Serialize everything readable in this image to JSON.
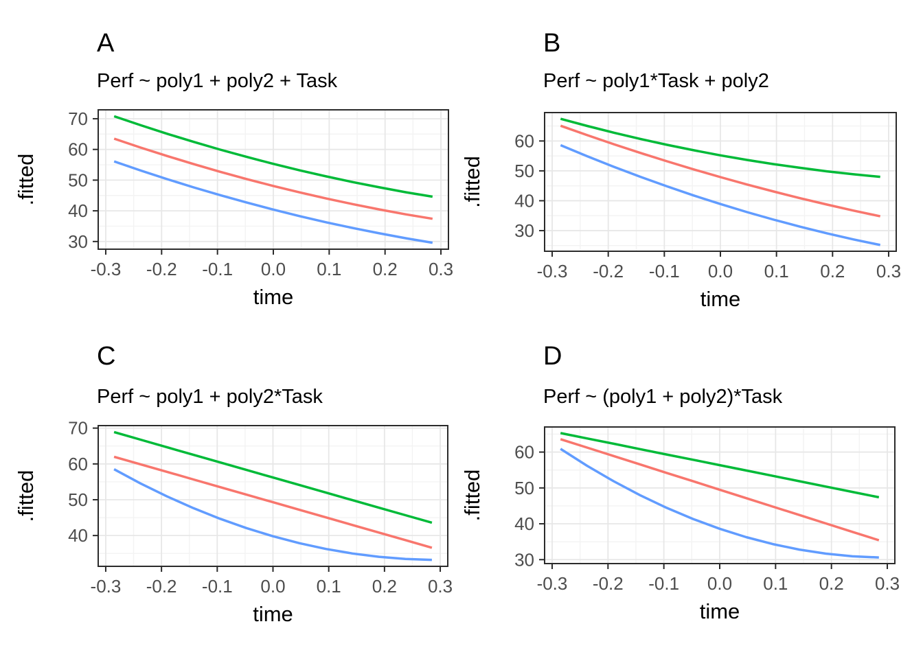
{
  "figure": {
    "background": "#FFFFFF",
    "theme": {
      "grid_major": "#E7E7E7",
      "grid_minor": "#F3F3F3",
      "panel_border": "#2B2B2B",
      "tick_mark_color": "#2B2B2B",
      "tick_label_color": "#4D4D4D",
      "axis_title_color": "#000000",
      "series_green": "#00BA38",
      "series_red": "#F8766D",
      "series_blue": "#619CFF"
    }
  },
  "chart_data": [
    {
      "type": "line",
      "label": "A",
      "title": "Perf ~ poly1 + poly2 + Task",
      "xlabel": "time",
      "ylabel": ".fitted",
      "xlim": [
        -0.3135,
        0.3135
      ],
      "ylim": [
        27.5,
        72.9
      ],
      "x_ticks": [
        -0.3,
        -0.2,
        -0.1,
        0,
        0.1,
        0.2,
        0.3
      ],
      "x_tick_labels": [
        "-0.3",
        "-0.2",
        "-0.1",
        "0.0",
        "0.1",
        "0.2",
        "0.3"
      ],
      "y_ticks": [
        30,
        40,
        50,
        60,
        70
      ],
      "y_tick_labels": [
        "30",
        "40",
        "50",
        "60",
        "70"
      ],
      "grid": "major+minor",
      "legend": "none",
      "x": [
        -0.285,
        -0.2375,
        -0.19,
        -0.1425,
        -0.095,
        -0.0475,
        0,
        0.0475,
        0.095,
        0.1425,
        0.19,
        0.2375,
        0.285
      ],
      "series": [
        {
          "name": "series-green",
          "color": "#00BA38",
          "values": [
            70.8,
            67.88,
            65.1,
            62.45,
            59.93,
            57.55,
            55.3,
            53.18,
            51.2,
            49.35,
            47.64,
            46.05,
            44.6
          ]
        },
        {
          "name": "series-red",
          "color": "#F8766D",
          "values": [
            63.5,
            60.61,
            57.84,
            55.22,
            52.71,
            50.34,
            48.1,
            45.99,
            44.01,
            42.16,
            40.44,
            38.85,
            37.4
          ]
        },
        {
          "name": "series-blue",
          "color": "#619CFF",
          "values": [
            56.1,
            53.14,
            50.32,
            47.63,
            45.09,
            42.68,
            40.4,
            38.26,
            36.25,
            34.39,
            32.66,
            31.06,
            29.6
          ]
        }
      ]
    },
    {
      "type": "line",
      "label": "B",
      "title": "Perf ~ poly1*Task + poly2",
      "xlabel": "time",
      "ylabel": ".fitted",
      "xlim": [
        -0.3135,
        0.3135
      ],
      "ylim": [
        23.1,
        69.5
      ],
      "x_ticks": [
        -0.3,
        -0.2,
        -0.1,
        0,
        0.1,
        0.2,
        0.3
      ],
      "x_tick_labels": [
        "-0.3",
        "-0.2",
        "-0.1",
        "0.0",
        "0.1",
        "0.2",
        "0.3"
      ],
      "y_ticks": [
        30,
        40,
        50,
        60
      ],
      "y_tick_labels": [
        "30",
        "40",
        "50",
        "60"
      ],
      "grid": "major+minor",
      "legend": "none",
      "x": [
        -0.285,
        -0.2375,
        -0.19,
        -0.1425,
        -0.095,
        -0.0475,
        0,
        0.0475,
        0.095,
        0.1425,
        0.19,
        0.2375,
        0.285
      ],
      "series": [
        {
          "name": "series-green",
          "color": "#00BA38",
          "values": [
            67.4,
            65.02,
            62.78,
            60.68,
            58.71,
            56.89,
            55.2,
            53.65,
            52.25,
            51.0,
            49.84,
            48.86,
            48.0
          ]
        },
        {
          "name": "series-red",
          "color": "#F8766D",
          "values": [
            65.1,
            61.95,
            58.91,
            55.99,
            53.18,
            50.49,
            47.9,
            45.43,
            43.08,
            40.83,
            38.71,
            36.69,
            34.8
          ]
        },
        {
          "name": "series-blue",
          "color": "#619CFF",
          "values": [
            58.6,
            54.9,
            51.36,
            48.0,
            44.8,
            41.76,
            38.9,
            36.2,
            33.66,
            31.3,
            29.1,
            27.06,
            25.2
          ]
        }
      ]
    },
    {
      "type": "line",
      "label": "C",
      "title": "Perf ~ poly1 + poly2*Task",
      "xlabel": "time",
      "ylabel": ".fitted",
      "xlim": [
        -0.3135,
        0.3135
      ],
      "ylim": [
        31.4,
        70.7
      ],
      "x_ticks": [
        -0.3,
        -0.2,
        -0.1,
        0,
        0.1,
        0.2,
        0.3
      ],
      "x_tick_labels": [
        "-0.3",
        "-0.2",
        "-0.1",
        "0.0",
        "0.1",
        "0.2",
        "0.3"
      ],
      "y_ticks": [
        40,
        50,
        60,
        70
      ],
      "y_tick_labels": [
        "40",
        "50",
        "60",
        "70"
      ],
      "grid": "major+minor",
      "legend": "none",
      "x": [
        -0.285,
        -0.2375,
        -0.19,
        -0.1425,
        -0.095,
        -0.0475,
        0,
        0.0475,
        0.095,
        0.1425,
        0.19,
        0.2375,
        0.285
      ],
      "series": [
        {
          "name": "series-green",
          "color": "#00BA38",
          "values": [
            68.9,
            66.77,
            64.65,
            62.53,
            60.42,
            58.31,
            56.2,
            54.09,
            51.99,
            49.88,
            47.78,
            45.69,
            43.6
          ]
        },
        {
          "name": "series-red",
          "color": "#F8766D",
          "values": [
            62.0,
            59.88,
            57.77,
            55.65,
            53.53,
            51.42,
            49.3,
            47.18,
            45.07,
            42.95,
            40.83,
            38.72,
            36.6
          ]
        },
        {
          "name": "series-blue",
          "color": "#619CFF",
          "values": [
            58.5,
            54.54,
            50.92,
            47.64,
            44.69,
            42.08,
            39.8,
            37.86,
            36.25,
            34.98,
            34.06,
            33.46,
            33.2
          ]
        }
      ]
    },
    {
      "type": "line",
      "label": "D",
      "title": "Perf ~ (poly1 + poly2)*Task",
      "xlabel": "time",
      "ylabel": ".fitted",
      "xlim": [
        -0.3135,
        0.3135
      ],
      "ylim": [
        28.9,
        67.0
      ],
      "x_ticks": [
        -0.3,
        -0.2,
        -0.1,
        0,
        0.1,
        0.2,
        0.3
      ],
      "x_tick_labels": [
        "-0.3",
        "-0.2",
        "-0.1",
        "0.0",
        "0.1",
        "0.2",
        "0.3"
      ],
      "y_ticks": [
        30,
        40,
        50,
        60
      ],
      "y_tick_labels": [
        "30",
        "40",
        "50",
        "60"
      ],
      "grid": "major+minor",
      "legend": "none",
      "x": [
        -0.285,
        -0.2375,
        -0.19,
        -0.1425,
        -0.095,
        -0.0475,
        0,
        0.0475,
        0.095,
        0.1425,
        0.19,
        0.2375,
        0.285
      ],
      "series": [
        {
          "name": "series-green",
          "color": "#00BA38",
          "values": [
            65.3,
            63.81,
            62.32,
            60.82,
            59.33,
            57.84,
            56.35,
            54.86,
            53.37,
            51.87,
            50.38,
            48.89,
            47.4
          ]
        },
        {
          "name": "series-red",
          "color": "#F8766D",
          "values": [
            63.6,
            61.25,
            58.9,
            56.55,
            54.2,
            51.85,
            49.5,
            47.15,
            44.8,
            42.45,
            40.1,
            37.75,
            35.4
          ]
        },
        {
          "name": "series-blue",
          "color": "#619CFF",
          "values": [
            60.9,
            56.19,
            51.88,
            47.97,
            44.44,
            41.33,
            38.6,
            36.27,
            34.34,
            32.81,
            31.68,
            30.93,
            30.6
          ]
        }
      ]
    }
  ]
}
